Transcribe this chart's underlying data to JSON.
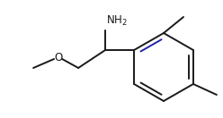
{
  "background_color": "#ffffff",
  "line_color": "#1a1a1a",
  "double_bond_color": "#2222aa",
  "text_color": "#1a1a1a",
  "line_width": 1.4,
  "font_size": 8.5,
  "figsize": [
    2.48,
    1.32
  ],
  "dpi": 100
}
